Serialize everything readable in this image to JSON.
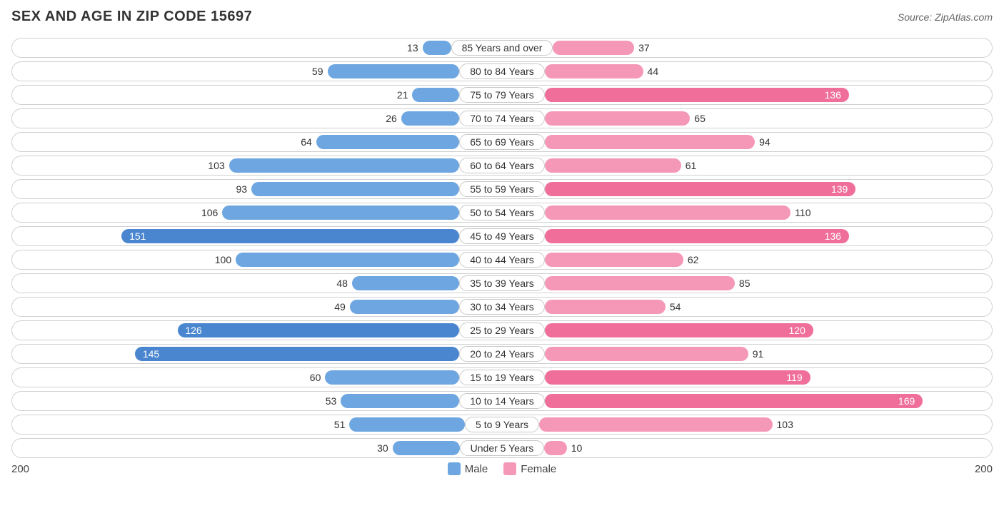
{
  "title": "SEX AND AGE IN ZIP CODE 15697",
  "source": "Source: ZipAtlas.com",
  "axis_max": 200,
  "axis_label_left": "200",
  "axis_label_right": "200",
  "colors": {
    "male_base": "#6da6e0",
    "male_dark": "#4a86cf",
    "female_base": "#f598b8",
    "female_dark": "#ef6f9a",
    "row_border": "#d0d0d0",
    "background": "#ffffff",
    "label_text": "#333333",
    "inside_text": "#ffffff"
  },
  "legend": {
    "male": "Male",
    "female": "Female"
  },
  "inside_threshold": 115,
  "center_label_width": 140,
  "rows": [
    {
      "label": "85 Years and over",
      "male": 13,
      "female": 37
    },
    {
      "label": "80 to 84 Years",
      "male": 59,
      "female": 44
    },
    {
      "label": "75 to 79 Years",
      "male": 21,
      "female": 136
    },
    {
      "label": "70 to 74 Years",
      "male": 26,
      "female": 65
    },
    {
      "label": "65 to 69 Years",
      "male": 64,
      "female": 94
    },
    {
      "label": "60 to 64 Years",
      "male": 103,
      "female": 61
    },
    {
      "label": "55 to 59 Years",
      "male": 93,
      "female": 139
    },
    {
      "label": "50 to 54 Years",
      "male": 106,
      "female": 110
    },
    {
      "label": "45 to 49 Years",
      "male": 151,
      "female": 136
    },
    {
      "label": "40 to 44 Years",
      "male": 100,
      "female": 62
    },
    {
      "label": "35 to 39 Years",
      "male": 48,
      "female": 85
    },
    {
      "label": "30 to 34 Years",
      "male": 49,
      "female": 54
    },
    {
      "label": "25 to 29 Years",
      "male": 126,
      "female": 120
    },
    {
      "label": "20 to 24 Years",
      "male": 145,
      "female": 91
    },
    {
      "label": "15 to 19 Years",
      "male": 60,
      "female": 119
    },
    {
      "label": "10 to 14 Years",
      "male": 53,
      "female": 169
    },
    {
      "label": "5 to 9 Years",
      "male": 51,
      "female": 103
    },
    {
      "label": "Under 5 Years",
      "male": 30,
      "female": 10
    }
  ]
}
